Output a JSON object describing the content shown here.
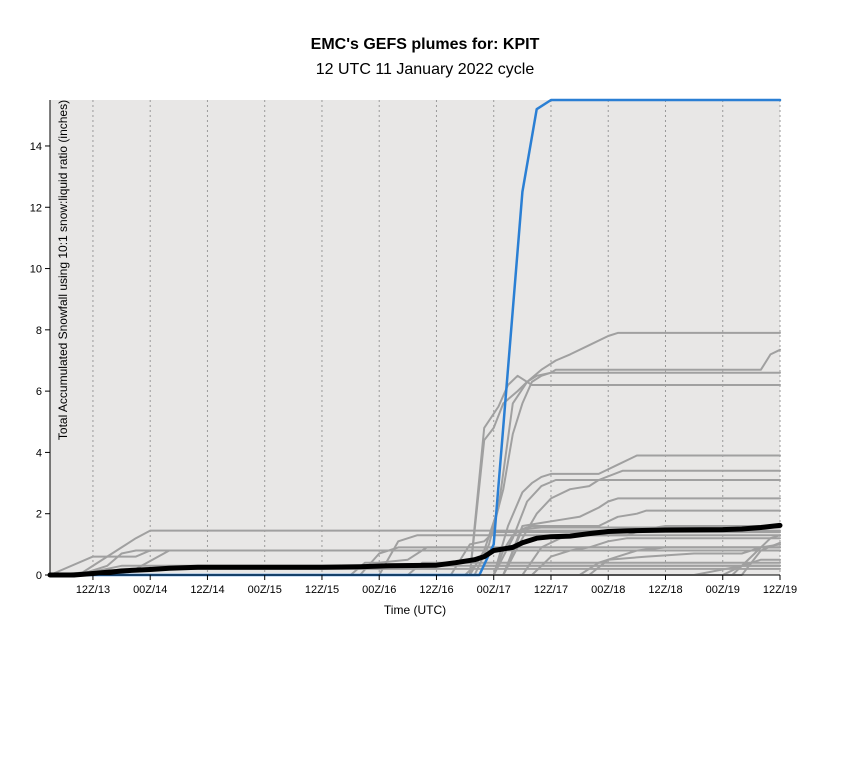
{
  "chart_data": {
    "type": "line",
    "title": "EMC's GEFS plumes for: KPIT",
    "subtitle": "12 UTC 11 January 2022 cycle",
    "xlabel": "Time (UTC)",
    "ylabel": "Total Accumulated Snowfall using 10:1 snow:liquid ratio (inches)",
    "x_ticks": [
      "12Z/13",
      "00Z/14",
      "12Z/14",
      "00Z/15",
      "12Z/15",
      "00Z/16",
      "12Z/16",
      "00Z/17",
      "12Z/17",
      "00Z/18",
      "12Z/18",
      "00Z/19",
      "12Z/19"
    ],
    "x_tick_hours": [
      24,
      36,
      48,
      60,
      72,
      84,
      96,
      108,
      120,
      132,
      144,
      156,
      168
    ],
    "x_unit": "forecast hours from 12 UTC 11 January 2022",
    "xlim": [
      15,
      168
    ],
    "ylim": [
      0,
      15.5
    ],
    "y_ticks": [
      0,
      2,
      4,
      6,
      8,
      10,
      12,
      14
    ],
    "grid": "vertical dotted lines at each x tick",
    "colors": {
      "background": "#e8e7e6",
      "members": "#a0a0a0",
      "mean": "#000000",
      "highlight": "#2a7fd4",
      "grid": "#9a9a9a"
    },
    "series": [
      {
        "role": "member",
        "color": "#a0a0a0",
        "points": [
          [
            15,
            0
          ],
          [
            27,
            0.1
          ],
          [
            30,
            0.2
          ],
          [
            168,
            0.2
          ]
        ]
      },
      {
        "role": "member",
        "color": "#a0a0a0",
        "points": [
          [
            15,
            0
          ],
          [
            24,
            0.1
          ],
          [
            30,
            0.3
          ],
          [
            168,
            0.3
          ]
        ]
      },
      {
        "role": "member",
        "color": "#a0a0a0",
        "points": [
          [
            15,
            0
          ],
          [
            33,
            0.2
          ],
          [
            40,
            0.8
          ],
          [
            168,
            0.8
          ]
        ]
      },
      {
        "role": "member",
        "color": "#a0a0a0",
        "points": [
          [
            15,
            0
          ],
          [
            24,
            0.6
          ],
          [
            33,
            0.6
          ],
          [
            36,
            0.8
          ],
          [
            39,
            0.8
          ],
          [
            168,
            0.8
          ]
        ]
      },
      {
        "role": "member",
        "color": "#a0a0a0",
        "points": [
          [
            15,
            0
          ],
          [
            21,
            0
          ],
          [
            27,
            0.3
          ],
          [
            30,
            0.7
          ],
          [
            33,
            0.8
          ],
          [
            36,
            0.8
          ],
          [
            168,
            0.8
          ]
        ]
      },
      {
        "role": "member",
        "color": "#a0a0a0",
        "points": [
          [
            15,
            0
          ],
          [
            21,
            0
          ],
          [
            30,
            0.9
          ],
          [
            33,
            1.2
          ],
          [
            36,
            1.45
          ],
          [
            168,
            1.45
          ]
        ]
      },
      {
        "role": "member",
        "color": "#a0a0a0",
        "points": [
          [
            15,
            0
          ],
          [
            80,
            0
          ],
          [
            84,
            0.7
          ],
          [
            88,
            0.9
          ],
          [
            168,
            0.9
          ]
        ]
      },
      {
        "role": "member",
        "color": "#a0a0a0",
        "points": [
          [
            15,
            0
          ],
          [
            78,
            0
          ],
          [
            81,
            0.4
          ],
          [
            84,
            0.4
          ],
          [
            90,
            0.5
          ],
          [
            94,
            0.9
          ],
          [
            168,
            0.9
          ]
        ]
      },
      {
        "role": "member",
        "color": "#a0a0a0",
        "points": [
          [
            15,
            0
          ],
          [
            90,
            0
          ],
          [
            93,
            0.4
          ],
          [
            102,
            0.4
          ],
          [
            168,
            0.4
          ]
        ]
      },
      {
        "role": "member",
        "color": "#a0a0a0",
        "points": [
          [
            15,
            0
          ],
          [
            84,
            0
          ],
          [
            88,
            1.1
          ],
          [
            92,
            1.3
          ],
          [
            104,
            1.3
          ],
          [
            168,
            1.3
          ]
        ]
      },
      {
        "role": "member",
        "color": "#a0a0a0",
        "points": [
          [
            15,
            0
          ],
          [
            99,
            0
          ],
          [
            103,
            1.0
          ],
          [
            106,
            1.1
          ],
          [
            108,
            1.4
          ],
          [
            168,
            1.4
          ]
        ]
      },
      {
        "role": "member",
        "color": "#a0a0a0",
        "points": [
          [
            15,
            0
          ],
          [
            102,
            0
          ],
          [
            104,
            0.3
          ],
          [
            106,
            0.3
          ],
          [
            168,
            0.3
          ]
        ]
      },
      {
        "role": "member",
        "color": "#a0a0a0",
        "points": [
          [
            15,
            0
          ],
          [
            103,
            0
          ],
          [
            106,
            4.8
          ],
          [
            109,
            5.5
          ],
          [
            111,
            6.2
          ],
          [
            113,
            6.5
          ],
          [
            116,
            6.2
          ],
          [
            168,
            6.2
          ]
        ]
      },
      {
        "role": "member",
        "color": "#a0a0a0",
        "points": [
          [
            15,
            0
          ],
          [
            103,
            0
          ],
          [
            106,
            4.4
          ],
          [
            108,
            4.8
          ],
          [
            110,
            5.6
          ],
          [
            113,
            6.0
          ],
          [
            115,
            6.3
          ],
          [
            118,
            6.7
          ],
          [
            121,
            7.0
          ],
          [
            124,
            7.2
          ],
          [
            128,
            7.5
          ],
          [
            132,
            7.8
          ],
          [
            134,
            7.9
          ],
          [
            168,
            7.9
          ]
        ]
      },
      {
        "role": "member",
        "color": "#a0a0a0",
        "points": [
          [
            15,
            0
          ],
          [
            103,
            0
          ],
          [
            106,
            0.8
          ],
          [
            109,
            2.2
          ],
          [
            112,
            5.6
          ],
          [
            115,
            6.3
          ],
          [
            117,
            6.5
          ],
          [
            120,
            6.6
          ],
          [
            121,
            6.7
          ],
          [
            164,
            6.7
          ],
          [
            166,
            7.2
          ],
          [
            168,
            7.35
          ]
        ]
      },
      {
        "role": "member",
        "color": "#a0a0a0",
        "points": [
          [
            15,
            0
          ],
          [
            104,
            0
          ],
          [
            107,
            1.0
          ],
          [
            110,
            2.8
          ],
          [
            112,
            4.6
          ],
          [
            114,
            5.6
          ],
          [
            116,
            6.3
          ],
          [
            118,
            6.5
          ],
          [
            120,
            6.6
          ],
          [
            168,
            6.6
          ]
        ]
      },
      {
        "role": "member",
        "color": "#a0a0a0",
        "points": [
          [
            15,
            0
          ],
          [
            108,
            0
          ],
          [
            111,
            1.6
          ],
          [
            114,
            2.7
          ],
          [
            116,
            3.0
          ],
          [
            118,
            3.2
          ],
          [
            120,
            3.3
          ],
          [
            130,
            3.3
          ],
          [
            134,
            3.6
          ],
          [
            138,
            3.9
          ],
          [
            168,
            3.9
          ]
        ]
      },
      {
        "role": "member",
        "color": "#a0a0a0",
        "points": [
          [
            15,
            0
          ],
          [
            108,
            0
          ],
          [
            112,
            1.2
          ],
          [
            115,
            2.4
          ],
          [
            118,
            2.9
          ],
          [
            121,
            3.1
          ],
          [
            125,
            3.1
          ],
          [
            168,
            3.1
          ]
        ]
      },
      {
        "role": "member",
        "color": "#a0a0a0",
        "points": [
          [
            15,
            0
          ],
          [
            110,
            0
          ],
          [
            114,
            1.2
          ],
          [
            117,
            2.0
          ],
          [
            120,
            2.5
          ],
          [
            124,
            2.8
          ],
          [
            128,
            2.9
          ],
          [
            130,
            3.1
          ],
          [
            135,
            3.4
          ],
          [
            168,
            3.4
          ]
        ]
      },
      {
        "role": "member",
        "color": "#a0a0a0",
        "points": [
          [
            15,
            0
          ],
          [
            110,
            0
          ],
          [
            114,
            1.6
          ],
          [
            118,
            1.7
          ],
          [
            122,
            1.8
          ],
          [
            126,
            1.9
          ],
          [
            130,
            2.2
          ],
          [
            132,
            2.4
          ],
          [
            134,
            2.5
          ],
          [
            168,
            2.5
          ]
        ]
      },
      {
        "role": "member",
        "color": "#a0a0a0",
        "points": [
          [
            15,
            0
          ],
          [
            108,
            0
          ],
          [
            110,
            0.8
          ],
          [
            112,
            1.3
          ],
          [
            114,
            1.5
          ],
          [
            116,
            1.6
          ],
          [
            130,
            1.6
          ],
          [
            134,
            1.9
          ],
          [
            138,
            2.0
          ],
          [
            140,
            2.1
          ],
          [
            168,
            2.1
          ]
        ]
      },
      {
        "role": "member",
        "color": "#a0a0a0",
        "points": [
          [
            15,
            0
          ],
          [
            110,
            0
          ],
          [
            114,
            1.5
          ],
          [
            118,
            1.55
          ],
          [
            168,
            1.55
          ]
        ]
      },
      {
        "role": "member",
        "color": "#a0a0a0",
        "points": [
          [
            15,
            0
          ],
          [
            114,
            0
          ],
          [
            118,
            0.9
          ],
          [
            122,
            1.2
          ],
          [
            126,
            1.3
          ],
          [
            136,
            1.3
          ],
          [
            140,
            1.5
          ],
          [
            144,
            1.6
          ],
          [
            168,
            1.6
          ]
        ]
      },
      {
        "role": "member",
        "color": "#a0a0a0",
        "points": [
          [
            15,
            0
          ],
          [
            116,
            0
          ],
          [
            120,
            0.6
          ],
          [
            124,
            0.8
          ],
          [
            128,
            0.9
          ],
          [
            132,
            1.1
          ],
          [
            136,
            1.2
          ],
          [
            168,
            1.2
          ]
        ]
      },
      {
        "role": "member",
        "color": "#a0a0a0",
        "points": [
          [
            15,
            0
          ],
          [
            126,
            0
          ],
          [
            130,
            0.4
          ],
          [
            134,
            0.6
          ],
          [
            138,
            0.8
          ],
          [
            144,
            0.9
          ],
          [
            168,
            0.9
          ]
        ]
      },
      {
        "role": "member",
        "color": "#a0a0a0",
        "points": [
          [
            15,
            0
          ],
          [
            128,
            0
          ],
          [
            132,
            0.5
          ],
          [
            140,
            0.6
          ],
          [
            150,
            0.7
          ],
          [
            160,
            0.7
          ],
          [
            164,
            0.9
          ],
          [
            168,
            1.0
          ]
        ]
      },
      {
        "role": "member",
        "color": "#a0a0a0",
        "points": [
          [
            15,
            0
          ],
          [
            156,
            0
          ],
          [
            160,
            0.3
          ],
          [
            164,
            0.5
          ],
          [
            168,
            0.5
          ]
        ]
      },
      {
        "role": "member",
        "color": "#a0a0a0",
        "points": [
          [
            15,
            0
          ],
          [
            158,
            0
          ],
          [
            162,
            0.6
          ],
          [
            166,
            1.2
          ],
          [
            168,
            1.3
          ]
        ]
      },
      {
        "role": "member",
        "color": "#a0a0a0",
        "points": [
          [
            15,
            0
          ],
          [
            150,
            0
          ],
          [
            160,
            0.3
          ],
          [
            168,
            0.3
          ]
        ]
      },
      {
        "role": "member",
        "color": "#a0a0a0",
        "points": [
          [
            15,
            0
          ],
          [
            160,
            0
          ],
          [
            164,
            0.8
          ],
          [
            168,
            1.05
          ]
        ]
      },
      {
        "role": "highlight",
        "color": "#2a7fd4",
        "points": [
          [
            15,
            0
          ],
          [
            105,
            0
          ],
          [
            108,
            1.0
          ],
          [
            114,
            12.5
          ],
          [
            117,
            15.2
          ],
          [
            120,
            15.5
          ],
          [
            168,
            15.5
          ]
        ]
      },
      {
        "role": "mean",
        "color": "#000000",
        "points": [
          [
            15,
            0
          ],
          [
            20,
            0
          ],
          [
            24,
            0.05
          ],
          [
            28,
            0.1
          ],
          [
            32,
            0.15
          ],
          [
            36,
            0.18
          ],
          [
            40,
            0.22
          ],
          [
            46,
            0.25
          ],
          [
            60,
            0.25
          ],
          [
            72,
            0.25
          ],
          [
            80,
            0.27
          ],
          [
            86,
            0.3
          ],
          [
            96,
            0.32
          ],
          [
            100,
            0.4
          ],
          [
            104,
            0.5
          ],
          [
            106,
            0.6
          ],
          [
            108,
            0.8
          ],
          [
            112,
            0.9
          ],
          [
            114,
            1.05
          ],
          [
            117,
            1.2
          ],
          [
            120,
            1.25
          ],
          [
            124,
            1.27
          ],
          [
            128,
            1.35
          ],
          [
            132,
            1.42
          ],
          [
            138,
            1.45
          ],
          [
            144,
            1.47
          ],
          [
            156,
            1.48
          ],
          [
            160,
            1.5
          ],
          [
            164,
            1.55
          ],
          [
            168,
            1.62
          ]
        ]
      }
    ]
  }
}
